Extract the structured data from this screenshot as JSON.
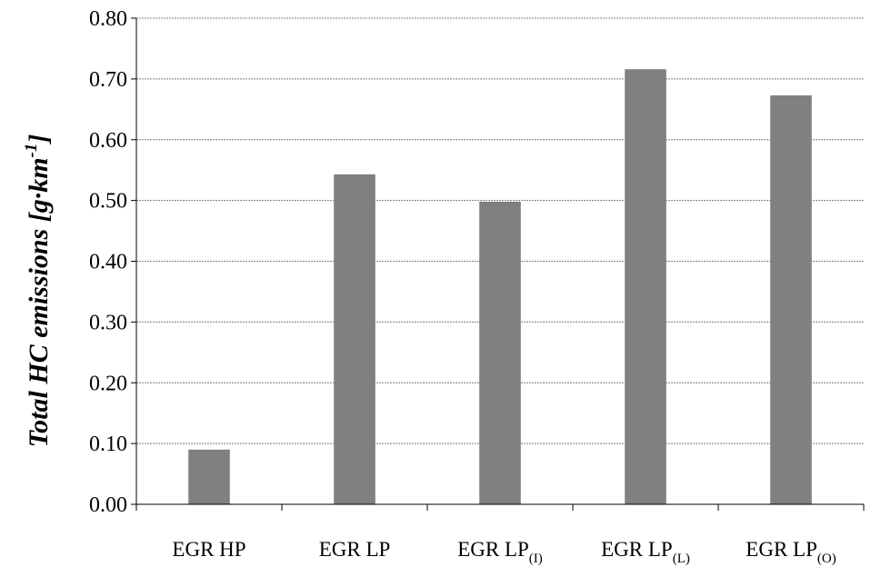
{
  "chart_data": {
    "type": "bar",
    "title": "",
    "xlabel": "",
    "ylabel": {
      "main": "Total HC emissions [g·km",
      "superscript": "-1",
      "close": "]"
    },
    "ylim": [
      0,
      0.8
    ],
    "yticks": [
      "0.00",
      "0.10",
      "0.20",
      "0.30",
      "0.40",
      "0.50",
      "0.60",
      "0.70",
      "0.80"
    ],
    "grid": "horizontal",
    "bar_color": "#808080",
    "categories": [
      {
        "main": "EGR HP",
        "sub": ""
      },
      {
        "main": "EGR LP",
        "sub": ""
      },
      {
        "main": "EGR LP",
        "sub": "(I)"
      },
      {
        "main": "EGR LP",
        "sub": "(L)"
      },
      {
        "main": "EGR LP",
        "sub": "(O)"
      }
    ],
    "values": [
      0.09,
      0.543,
      0.498,
      0.716,
      0.673
    ]
  }
}
